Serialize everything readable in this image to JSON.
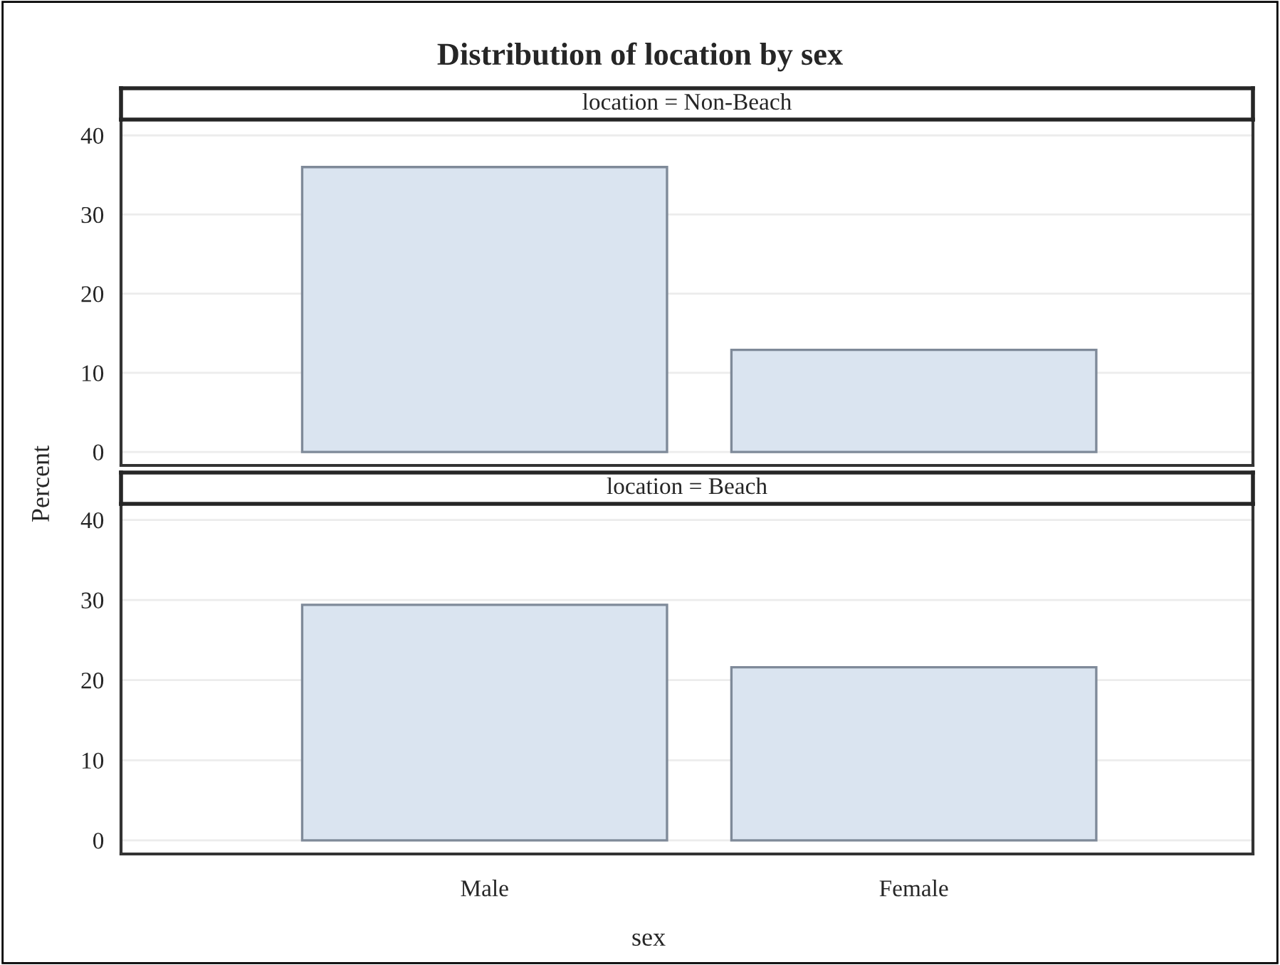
{
  "chart_data": [
    {
      "type": "bar",
      "title": "Distribution of location by sex",
      "subtitle": "location = Non-Beach",
      "ylabel": "Percent",
      "categories": [
        null,
        null
      ],
      "values": [
        36,
        12.9
      ],
      "color": "#dae4f0",
      "ylim": [
        -1.7,
        42
      ],
      "yticks": [
        0,
        10,
        20,
        30,
        40
      ],
      "grid": "y",
      "tick_labels": "y"
    },
    {
      "type": "bar",
      "subtitle": "location = Beach",
      "xlabel": "sex",
      "categories": [
        "Male",
        "Female"
      ],
      "values": [
        29.4,
        21.6
      ],
      "color": "#dae4f0",
      "ylim": [
        -1.7,
        42
      ],
      "yticks": [
        0,
        10,
        20,
        30,
        40
      ],
      "grid": "y"
    }
  ]
}
